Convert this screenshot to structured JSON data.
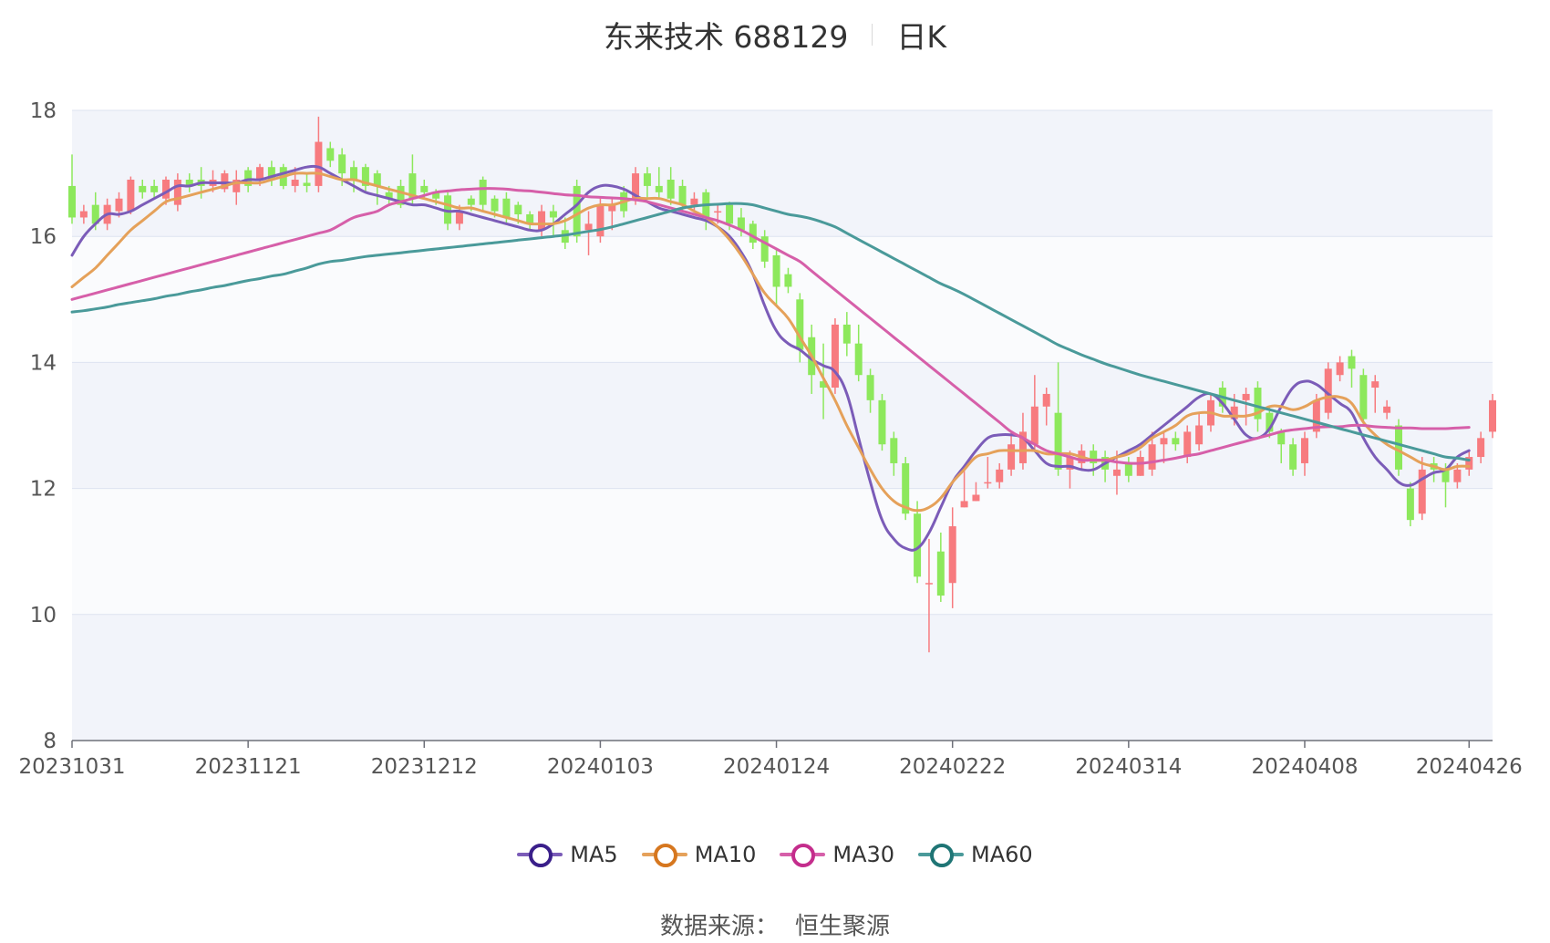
{
  "title": {
    "name": "东来技术 688129",
    "period": "日K"
  },
  "source": {
    "label": "数据来源：",
    "value": "恒生聚源"
  },
  "chart_data": {
    "type": "candlestick",
    "up_color": "#f77b7f",
    "down_color": "#8de85c",
    "band_colors": [
      "#f2f4fa",
      "#fafbfd"
    ],
    "grid_color": "#dde3f0",
    "ylim": [
      8,
      18
    ],
    "y_ticks": [
      8,
      10,
      12,
      14,
      16,
      18
    ],
    "x_tick_labels": [
      {
        "date": "20231031",
        "index": 0
      },
      {
        "date": "20231121",
        "index": 15
      },
      {
        "date": "20231212",
        "index": 30
      },
      {
        "date": "20240103",
        "index": 45
      },
      {
        "date": "20240124",
        "index": 60
      },
      {
        "date": "20240222",
        "index": 75
      },
      {
        "date": "20240314",
        "index": 90
      },
      {
        "date": "20240408",
        "index": 105
      },
      {
        "date": "20240426",
        "index": 119
      }
    ],
    "candles": [
      [
        16.8,
        16.3,
        17.3,
        16.2
      ],
      [
        16.3,
        16.4,
        16.5,
        16.2
      ],
      [
        16.5,
        16.2,
        16.7,
        16.1
      ],
      [
        16.2,
        16.5,
        16.6,
        16.1
      ],
      [
        16.4,
        16.6,
        16.7,
        16.3
      ],
      [
        16.4,
        16.9,
        16.95,
        16.35
      ],
      [
        16.8,
        16.7,
        16.9,
        16.6
      ],
      [
        16.8,
        16.7,
        16.9,
        16.6
      ],
      [
        16.6,
        16.9,
        16.95,
        16.5
      ],
      [
        16.5,
        16.9,
        17.0,
        16.4
      ],
      [
        16.9,
        16.8,
        17.0,
        16.7
      ],
      [
        16.9,
        16.8,
        17.1,
        16.6
      ],
      [
        16.8,
        16.9,
        17.05,
        16.7
      ],
      [
        16.75,
        17.0,
        17.05,
        16.7
      ],
      [
        16.7,
        16.9,
        17.05,
        16.5
      ],
      [
        17.05,
        16.8,
        17.1,
        16.7
      ],
      [
        16.9,
        17.1,
        17.15,
        16.8
      ],
      [
        17.1,
        16.9,
        17.2,
        16.8
      ],
      [
        17.1,
        16.8,
        17.15,
        16.75
      ],
      [
        16.8,
        16.9,
        17.1,
        16.7
      ],
      [
        16.85,
        16.8,
        17.0,
        16.7
      ],
      [
        16.8,
        17.5,
        17.9,
        16.7
      ],
      [
        17.4,
        17.2,
        17.5,
        17.1
      ],
      [
        17.3,
        17.0,
        17.4,
        16.8
      ],
      [
        17.1,
        16.9,
        17.2,
        16.7
      ],
      [
        17.1,
        16.8,
        17.15,
        16.7
      ],
      [
        17.0,
        16.8,
        17.05,
        16.5
      ],
      [
        16.7,
        16.6,
        16.8,
        16.5
      ],
      [
        16.8,
        16.5,
        16.9,
        16.45
      ],
      [
        17.0,
        16.6,
        17.3,
        16.5
      ],
      [
        16.8,
        16.7,
        16.9,
        16.6
      ],
      [
        16.7,
        16.6,
        16.75,
        16.5
      ],
      [
        16.65,
        16.2,
        16.7,
        16.1
      ],
      [
        16.2,
        16.4,
        16.5,
        16.1
      ],
      [
        16.6,
        16.5,
        16.65,
        16.4
      ],
      [
        16.9,
        16.5,
        16.95,
        16.4
      ],
      [
        16.6,
        16.4,
        16.65,
        16.3
      ],
      [
        16.6,
        16.3,
        16.7,
        16.2
      ],
      [
        16.5,
        16.35,
        16.55,
        16.2
      ],
      [
        16.35,
        16.2,
        16.4,
        16.1
      ],
      [
        16.1,
        16.4,
        16.5,
        16.0
      ],
      [
        16.4,
        16.3,
        16.5,
        16.0
      ],
      [
        16.1,
        15.9,
        16.3,
        15.8
      ],
      [
        16.8,
        16.0,
        16.9,
        15.9
      ],
      [
        16.1,
        16.2,
        16.4,
        15.7
      ],
      [
        16.0,
        16.5,
        16.6,
        15.9
      ],
      [
        16.4,
        16.5,
        16.6,
        16.1
      ],
      [
        16.7,
        16.4,
        16.8,
        16.3
      ],
      [
        16.6,
        17.0,
        17.1,
        16.5
      ],
      [
        17.0,
        16.8,
        17.1,
        16.6
      ],
      [
        16.8,
        16.7,
        17.1,
        16.6
      ],
      [
        16.9,
        16.6,
        17.1,
        16.5
      ],
      [
        16.8,
        16.5,
        16.9,
        16.4
      ],
      [
        16.5,
        16.6,
        16.7,
        16.4
      ],
      [
        16.7,
        16.3,
        16.75,
        16.1
      ],
      [
        16.4,
        16.4,
        16.5,
        16.2
      ],
      [
        16.5,
        16.2,
        16.55,
        16.1
      ],
      [
        16.3,
        16.1,
        16.45,
        16.0
      ],
      [
        16.2,
        15.9,
        16.25,
        15.8
      ],
      [
        16.0,
        15.6,
        16.1,
        15.5
      ],
      [
        15.7,
        15.2,
        15.8,
        14.9
      ],
      [
        15.4,
        15.2,
        15.5,
        15.1
      ],
      [
        15.0,
        14.2,
        15.1,
        14.0
      ],
      [
        14.4,
        13.8,
        14.6,
        13.5
      ],
      [
        13.7,
        13.6,
        14.3,
        13.1
      ],
      [
        13.6,
        14.6,
        14.7,
        13.5
      ],
      [
        14.6,
        14.3,
        14.8,
        14.1
      ],
      [
        14.3,
        13.8,
        14.6,
        13.7
      ],
      [
        13.8,
        13.4,
        13.9,
        13.2
      ],
      [
        13.4,
        12.7,
        13.5,
        12.6
      ],
      [
        12.8,
        12.4,
        12.9,
        12.2
      ],
      [
        12.4,
        11.6,
        12.5,
        11.5
      ],
      [
        11.6,
        10.6,
        11.8,
        10.5
      ],
      [
        10.5,
        10.5,
        11.2,
        9.4
      ],
      [
        11.0,
        10.3,
        11.3,
        10.2
      ],
      [
        10.5,
        11.4,
        11.7,
        10.1
      ],
      [
        11.7,
        11.8,
        12.3,
        11.7
      ],
      [
        11.8,
        11.9,
        12.1,
        11.8
      ],
      [
        12.1,
        12.1,
        12.5,
        12.0
      ],
      [
        12.1,
        12.3,
        12.4,
        12.0
      ],
      [
        12.3,
        12.7,
        12.9,
        12.2
      ],
      [
        12.4,
        12.9,
        13.2,
        12.3
      ],
      [
        12.7,
        13.3,
        13.8,
        12.6
      ],
      [
        13.3,
        13.5,
        13.6,
        13.0
      ],
      [
        13.2,
        12.3,
        14.0,
        12.2
      ],
      [
        12.3,
        12.5,
        12.6,
        12.0
      ],
      [
        12.4,
        12.6,
        12.7,
        12.3
      ],
      [
        12.6,
        12.4,
        12.7,
        12.2
      ],
      [
        12.5,
        12.3,
        12.6,
        12.1
      ],
      [
        12.2,
        12.3,
        12.6,
        11.9
      ],
      [
        12.4,
        12.2,
        12.5,
        12.1
      ],
      [
        12.2,
        12.5,
        12.6,
        12.2
      ],
      [
        12.3,
        12.7,
        12.9,
        12.2
      ],
      [
        12.7,
        12.8,
        12.9,
        12.4
      ],
      [
        12.8,
        12.7,
        12.9,
        12.6
      ],
      [
        12.5,
        12.9,
        13.0,
        12.4
      ],
      [
        12.7,
        13.0,
        13.2,
        12.6
      ],
      [
        13.0,
        13.4,
        13.5,
        12.9
      ],
      [
        13.6,
        13.3,
        13.7,
        13.2
      ],
      [
        13.1,
        13.3,
        13.5,
        13.0
      ],
      [
        13.4,
        13.5,
        13.6,
        13.0
      ],
      [
        13.6,
        13.1,
        13.7,
        12.9
      ],
      [
        13.2,
        12.9,
        13.3,
        12.8
      ],
      [
        12.9,
        12.7,
        12.95,
        12.4
      ],
      [
        12.7,
        12.3,
        12.8,
        12.2
      ],
      [
        12.4,
        12.8,
        12.9,
        12.2
      ],
      [
        12.9,
        13.4,
        13.5,
        12.8
      ],
      [
        13.2,
        13.9,
        14.0,
        13.1
      ],
      [
        13.8,
        14.0,
        14.1,
        13.7
      ],
      [
        14.1,
        13.9,
        14.2,
        13.6
      ],
      [
        13.8,
        13.1,
        13.9,
        13.0
      ],
      [
        13.6,
        13.7,
        13.8,
        13.2
      ],
      [
        13.2,
        13.3,
        13.4,
        13.1
      ],
      [
        13.0,
        12.3,
        13.1,
        12.2
      ],
      [
        12.0,
        11.5,
        12.1,
        11.4
      ],
      [
        11.6,
        12.3,
        12.5,
        11.5
      ],
      [
        12.4,
        12.3,
        12.5,
        12.1
      ],
      [
        12.3,
        12.1,
        12.4,
        11.7
      ],
      [
        12.1,
        12.3,
        12.4,
        12.0
      ],
      [
        12.3,
        12.5,
        12.6,
        12.2
      ],
      [
        12.5,
        12.8,
        12.9,
        12.4
      ],
      [
        12.9,
        13.4,
        13.5,
        12.8
      ]
    ],
    "series": [
      {
        "name": "MA5",
        "color": "#7b5cb8",
        "values": [
          15.7,
          16.0,
          16.2,
          16.35,
          16.35,
          16.4,
          16.5,
          16.6,
          16.7,
          16.8,
          16.8,
          16.85,
          16.85,
          16.85,
          16.85,
          16.9,
          16.9,
          16.95,
          17.0,
          17.05,
          17.1,
          17.1,
          17.0,
          16.9,
          16.8,
          16.7,
          16.65,
          16.6,
          16.55,
          16.5,
          16.5,
          16.45,
          16.4,
          16.4,
          16.35,
          16.3,
          16.25,
          16.2,
          16.15,
          16.1,
          16.1,
          16.2,
          16.35,
          16.5,
          16.7,
          16.8,
          16.8,
          16.75,
          16.65,
          16.55,
          16.45,
          16.4,
          16.35,
          16.3,
          16.25,
          16.15,
          16.0,
          15.75,
          15.4,
          14.9,
          14.5,
          14.3,
          14.2,
          14.05,
          13.95,
          13.85,
          13.5,
          12.8,
          12.1,
          11.5,
          11.2,
          11.05,
          11.05,
          11.3,
          11.7,
          12.1,
          12.35,
          12.6,
          12.8,
          12.85,
          12.85,
          12.8,
          12.6,
          12.4,
          12.35,
          12.35,
          12.3,
          12.3,
          12.4,
          12.5,
          12.6,
          12.7,
          12.85,
          13.0,
          13.15,
          13.3,
          13.45,
          13.5,
          13.35,
          13.1,
          12.85,
          12.8,
          12.95,
          13.3,
          13.6,
          13.7,
          13.65,
          13.5,
          13.35,
          13.2,
          12.8,
          12.5,
          12.3,
          12.1,
          12.05,
          12.15,
          12.25,
          12.3,
          12.5,
          12.6
        ]
      },
      {
        "name": "MA10",
        "color": "#e5a15a",
        "values": [
          15.2,
          15.35,
          15.5,
          15.7,
          15.9,
          16.1,
          16.25,
          16.4,
          16.55,
          16.6,
          16.65,
          16.7,
          16.75,
          16.8,
          16.85,
          16.85,
          16.85,
          16.9,
          16.95,
          17.0,
          17.0,
          17.0,
          16.95,
          16.9,
          16.9,
          16.85,
          16.8,
          16.75,
          16.7,
          16.65,
          16.6,
          16.55,
          16.5,
          16.45,
          16.45,
          16.4,
          16.35,
          16.3,
          16.25,
          16.2,
          16.2,
          16.2,
          16.25,
          16.35,
          16.45,
          16.5,
          16.5,
          16.55,
          16.6,
          16.6,
          16.6,
          16.55,
          16.5,
          16.4,
          16.3,
          16.15,
          15.95,
          15.7,
          15.4,
          15.1,
          14.9,
          14.7,
          14.4,
          14.1,
          13.75,
          13.4,
          13.0,
          12.65,
          12.3,
          12.0,
          11.8,
          11.7,
          11.65,
          11.7,
          11.85,
          12.1,
          12.3,
          12.5,
          12.55,
          12.6,
          12.6,
          12.6,
          12.6,
          12.55,
          12.55,
          12.55,
          12.5,
          12.45,
          12.45,
          12.5,
          12.55,
          12.65,
          12.8,
          12.9,
          13.0,
          13.15,
          13.2,
          13.2,
          13.15,
          13.15,
          13.15,
          13.2,
          13.3,
          13.3,
          13.25,
          13.3,
          13.4,
          13.45,
          13.45,
          13.35,
          13.05,
          12.85,
          12.7,
          12.6,
          12.5,
          12.4,
          12.35,
          12.3,
          12.35,
          12.35
        ]
      },
      {
        "name": "MA30",
        "color": "#d65fa9",
        "values": [
          15.0,
          15.05,
          15.1,
          15.15,
          15.2,
          15.25,
          15.3,
          15.35,
          15.4,
          15.45,
          15.5,
          15.55,
          15.6,
          15.65,
          15.7,
          15.75,
          15.8,
          15.85,
          15.9,
          15.95,
          16.0,
          16.05,
          16.1,
          16.2,
          16.3,
          16.35,
          16.4,
          16.5,
          16.55,
          16.6,
          16.65,
          16.7,
          16.72,
          16.74,
          16.75,
          16.76,
          16.76,
          16.75,
          16.73,
          16.72,
          16.7,
          16.68,
          16.66,
          16.65,
          16.63,
          16.62,
          16.61,
          16.6,
          16.58,
          16.55,
          16.5,
          16.45,
          16.4,
          16.35,
          16.3,
          16.25,
          16.18,
          16.1,
          16.0,
          15.9,
          15.8,
          15.7,
          15.6,
          15.45,
          15.3,
          15.15,
          15.0,
          14.85,
          14.7,
          14.55,
          14.4,
          14.25,
          14.1,
          13.95,
          13.8,
          13.65,
          13.5,
          13.35,
          13.2,
          13.05,
          12.9,
          12.8,
          12.7,
          12.6,
          12.55,
          12.5,
          12.45,
          12.45,
          12.45,
          12.42,
          12.4,
          12.4,
          12.42,
          12.45,
          12.48,
          12.52,
          12.55,
          12.6,
          12.65,
          12.7,
          12.75,
          12.8,
          12.85,
          12.9,
          12.93,
          12.95,
          12.97,
          12.98,
          12.98,
          13.0,
          13.0,
          12.98,
          12.97,
          12.96,
          12.96,
          12.95,
          12.95,
          12.95,
          12.96,
          12.97
        ]
      },
      {
        "name": "MA60",
        "color": "#4a9a9a",
        "values": [
          14.8,
          14.82,
          14.85,
          14.88,
          14.92,
          14.95,
          14.98,
          15.01,
          15.05,
          15.08,
          15.12,
          15.15,
          15.19,
          15.22,
          15.26,
          15.3,
          15.33,
          15.37,
          15.4,
          15.45,
          15.5,
          15.56,
          15.6,
          15.62,
          15.65,
          15.68,
          15.7,
          15.72,
          15.74,
          15.76,
          15.78,
          15.8,
          15.82,
          15.84,
          15.86,
          15.88,
          15.9,
          15.92,
          15.94,
          15.96,
          15.98,
          16.0,
          16.02,
          16.05,
          16.08,
          16.11,
          16.15,
          16.2,
          16.25,
          16.3,
          16.35,
          16.4,
          16.45,
          16.48,
          16.5,
          16.51,
          16.52,
          16.52,
          16.5,
          16.45,
          16.4,
          16.35,
          16.32,
          16.28,
          16.22,
          16.15,
          16.05,
          15.95,
          15.85,
          15.75,
          15.65,
          15.55,
          15.45,
          15.35,
          15.25,
          15.17,
          15.08,
          14.98,
          14.88,
          14.78,
          14.68,
          14.58,
          14.48,
          14.38,
          14.28,
          14.2,
          14.12,
          14.05,
          13.98,
          13.92,
          13.86,
          13.8,
          13.75,
          13.7,
          13.65,
          13.6,
          13.55,
          13.5,
          13.45,
          13.4,
          13.35,
          13.3,
          13.25,
          13.2,
          13.15,
          13.1,
          13.05,
          13.0,
          12.95,
          12.9,
          12.85,
          12.8,
          12.75,
          12.7,
          12.65,
          12.6,
          12.55,
          12.5,
          12.48,
          12.45
        ]
      }
    ]
  }
}
